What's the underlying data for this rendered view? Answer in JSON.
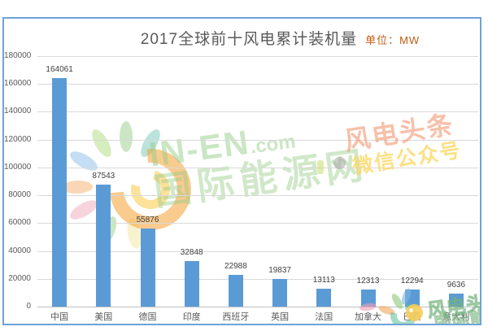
{
  "title": {
    "text": "2017全球前十风电累计装机量",
    "unit": "单位：MW"
  },
  "chart_data": {
    "type": "bar",
    "title": "2017全球前十风电累计装机量",
    "unit_label": "单位：MW",
    "categories": [
      "中国",
      "美国",
      "德国",
      "印度",
      "西班牙",
      "英国",
      "法国",
      "加拿大",
      "巴西",
      "意大利"
    ],
    "values": [
      164061,
      87543,
      55876,
      32848,
      22988,
      19837,
      13113,
      12313,
      12294,
      9636
    ],
    "xlabel": "",
    "ylabel": "",
    "ylim": [
      0,
      180000
    ],
    "yticks": [
      0,
      20000,
      40000,
      60000,
      80000,
      100000,
      120000,
      140000,
      160000,
      180000
    ],
    "grid": true,
    "legend": "none",
    "value_labels_shown": true,
    "bar_color": "#5B9BD5"
  },
  "watermarks": {
    "center": {
      "brand": "IN-EN",
      "domain": ".com",
      "name": "国际能源网"
    },
    "right": {
      "line1": "风电头条",
      "line2": "微信公众号"
    },
    "bottom_right": {
      "line1": "风电头条",
      "line2": "国际能源网"
    }
  },
  "colors": {
    "bar": "#5B9BD5",
    "frame_border": "#6FA3D8",
    "title_text": "#595959",
    "unit_text": "#C55A11",
    "gridline": "#D9D9D9",
    "axis_line": "#BFBFBF",
    "tick_label": "#595959",
    "value_label": "#404040",
    "watermark_green": "#8CC87A",
    "watermark_salmon": "#F39670",
    "watermark_yellow": "#FCD350"
  }
}
